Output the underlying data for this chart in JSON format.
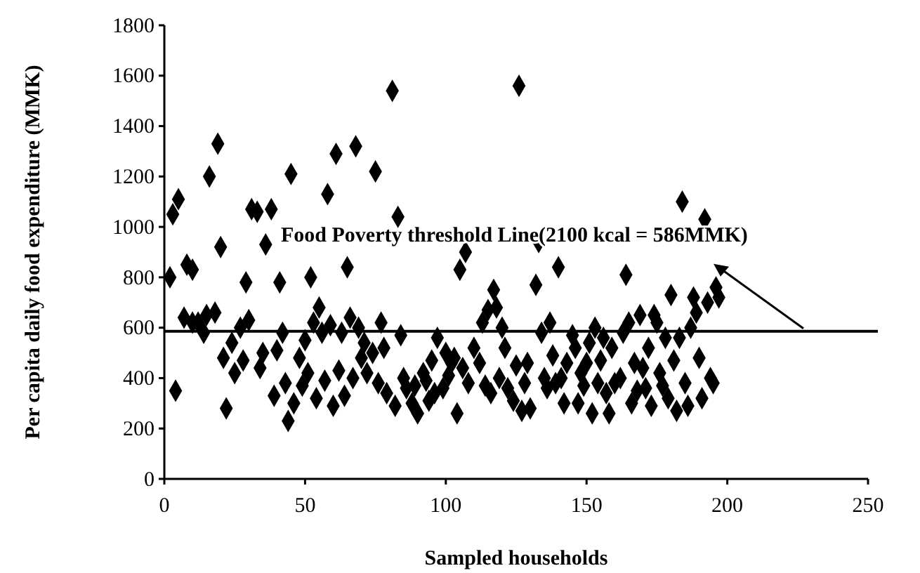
{
  "chart_data": {
    "type": "scatter",
    "xlabel": "Sampled households",
    "ylabel": "Per capita daily food expenditure (MMK)",
    "xlim": [
      0,
      250
    ],
    "xticks": [
      0,
      50,
      100,
      150,
      200,
      250
    ],
    "ylim": [
      0,
      1800
    ],
    "yticks": [
      0,
      200,
      400,
      600,
      800,
      1000,
      1200,
      1400,
      1600,
      1800
    ],
    "marker": "diamond",
    "grid": false,
    "ref_lines": [
      {
        "axis": "y",
        "value": 586,
        "label": "Food Poverty threshold Line(2100 kcal = 586MMK)",
        "color": "#000000",
        "line_style": "solid"
      }
    ],
    "series": [
      {
        "color": "#000000",
        "x": [
          2,
          3,
          5,
          4,
          7,
          8,
          10,
          10,
          12,
          14,
          15,
          16,
          18,
          19,
          20,
          21,
          22,
          24,
          25,
          27,
          28,
          29,
          30,
          31,
          33,
          34,
          35,
          36,
          38,
          39,
          40,
          41,
          42,
          43,
          44,
          45,
          46,
          48,
          49,
          50,
          51,
          52,
          53,
          54,
          55,
          56,
          57,
          58,
          59,
          60,
          61,
          62,
          63,
          64,
          65,
          66,
          67,
          68,
          69,
          70,
          71,
          72,
          74,
          75,
          76,
          77,
          78,
          79,
          81,
          82,
          83,
          84,
          85,
          86,
          88,
          89,
          90,
          92,
          93,
          94,
          95,
          96,
          97,
          99,
          100,
          101,
          102,
          103,
          104,
          105,
          106,
          107,
          108,
          110,
          112,
          113,
          114,
          115,
          116,
          117,
          118,
          119,
          120,
          121,
          122,
          124,
          125,
          126,
          127,
          128,
          129,
          130,
          132,
          133,
          134,
          135,
          136,
          137,
          138,
          139,
          140,
          141,
          142,
          143,
          145,
          146,
          147,
          148,
          149,
          150,
          151,
          152,
          153,
          154,
          155,
          156,
          157,
          158,
          159,
          160,
          162,
          163,
          164,
          165,
          166,
          167,
          168,
          169,
          170,
          171,
          172,
          173,
          174,
          175,
          176,
          177,
          178,
          179,
          180,
          181,
          182,
          183,
          184,
          185,
          186,
          187,
          188,
          189,
          190,
          191,
          192,
          193,
          194,
          195,
          196,
          197
        ],
        "values": [
          800,
          1050,
          1110,
          350,
          640,
          850,
          830,
          620,
          620,
          580,
          650,
          1200,
          660,
          1330,
          920,
          480,
          280,
          540,
          420,
          600,
          470,
          780,
          630,
          1070,
          1060,
          440,
          500,
          930,
          1070,
          330,
          510,
          780,
          580,
          380,
          230,
          1210,
          300,
          480,
          370,
          550,
          420,
          800,
          620,
          320,
          680,
          580,
          390,
          1130,
          610,
          290,
          1290,
          430,
          580,
          330,
          840,
          640,
          400,
          1320,
          600,
          480,
          540,
          420,
          500,
          1220,
          380,
          620,
          520,
          340,
          1540,
          290,
          1040,
          570,
          400,
          360,
          300,
          370,
          260,
          420,
          390,
          310,
          470,
          340,
          560,
          360,
          500,
          410,
          460,
          480,
          260,
          830,
          440,
          900,
          380,
          520,
          460,
          620,
          370,
          670,
          340,
          750,
          680,
          400,
          600,
          520,
          360,
          310,
          450,
          1560,
          270,
          380,
          460,
          280,
          770,
          940,
          580,
          400,
          360,
          620,
          490,
          380,
          840,
          400,
          300,
          460,
          570,
          520,
          300,
          420,
          370,
          460,
          540,
          260,
          600,
          380,
          470,
          560,
          340,
          260,
          520,
          380,
          400,
          580,
          810,
          620,
          300,
          460,
          350,
          650,
          440,
          360,
          520,
          290,
          650,
          620,
          420,
          370,
          560,
          320,
          730,
          470,
          270,
          560,
          1100,
          380,
          290,
          600,
          720,
          660,
          480,
          320,
          1030,
          700,
          400,
          380,
          760,
          720
        ]
      }
    ]
  }
}
